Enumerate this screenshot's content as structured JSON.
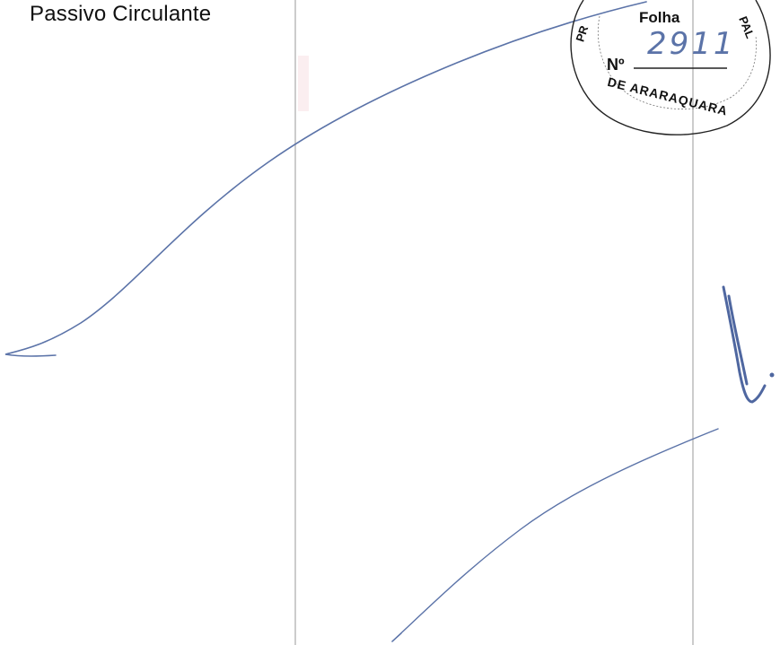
{
  "page": {
    "section_heading": "Passivo Circulante"
  },
  "stamp": {
    "top_arc_text": "PREFEITURA MUNICIPAL",
    "folha_label": "Folha",
    "folha_number": "2911",
    "numero_label": "Nº",
    "bottom_arc_text": "DE ARARAQUARA"
  },
  "colors": {
    "ink_blue": "#5b73a8",
    "text": "#111111",
    "rule": "#cccccc"
  }
}
